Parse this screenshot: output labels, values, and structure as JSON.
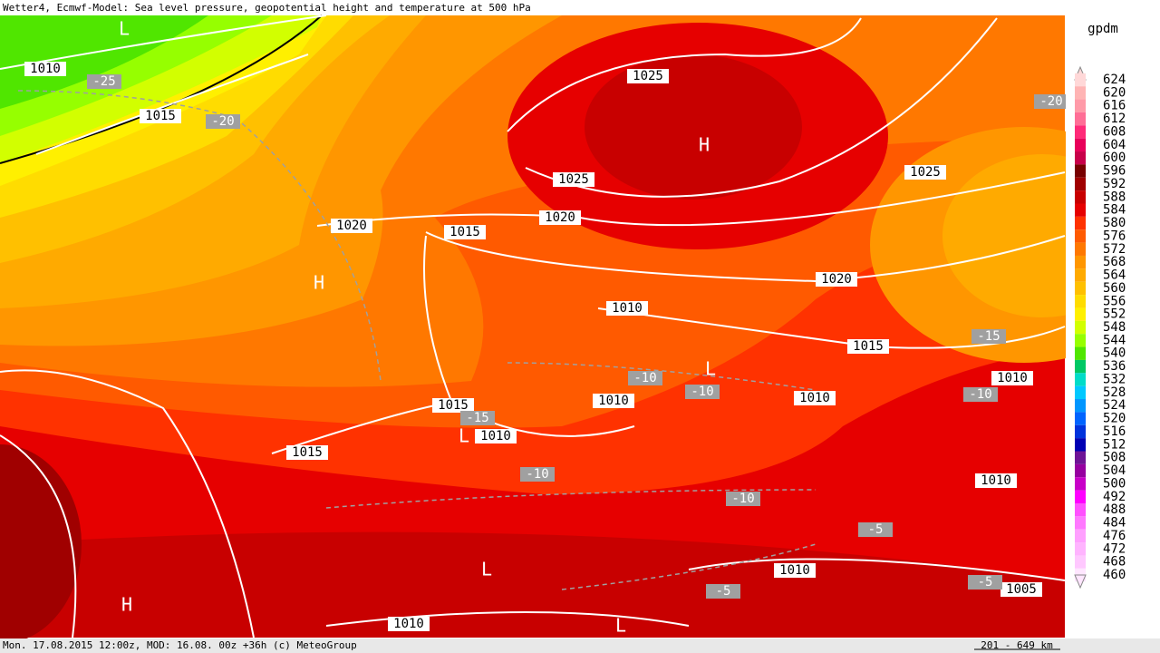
{
  "header": {
    "title": "Wetter4, Ecmwf-Model: Sea level pressure, geopotential height and temperature at 500 hPa"
  },
  "legend": {
    "unit": "gpdm",
    "levels": [
      {
        "value": 624,
        "color": "#ffd8d8"
      },
      {
        "value": 620,
        "color": "#ffb4b4"
      },
      {
        "value": 616,
        "color": "#ff9aa8"
      },
      {
        "value": 612,
        "color": "#ff6e96"
      },
      {
        "value": 608,
        "color": "#ff2a78"
      },
      {
        "value": 604,
        "color": "#e8005a"
      },
      {
        "value": 600,
        "color": "#c8004a"
      },
      {
        "value": 596,
        "color": "#780000"
      },
      {
        "value": 592,
        "color": "#a00000"
      },
      {
        "value": 588,
        "color": "#c80000"
      },
      {
        "value": 584,
        "color": "#e60000"
      },
      {
        "value": 580,
        "color": "#ff3200"
      },
      {
        "value": 576,
        "color": "#ff5a00"
      },
      {
        "value": 572,
        "color": "#ff7800"
      },
      {
        "value": 568,
        "color": "#ff9600"
      },
      {
        "value": 564,
        "color": "#ffaa00"
      },
      {
        "value": 560,
        "color": "#ffc000"
      },
      {
        "value": 556,
        "color": "#ffdc00"
      },
      {
        "value": 552,
        "color": "#fff000"
      },
      {
        "value": 548,
        "color": "#d2ff00"
      },
      {
        "value": 544,
        "color": "#96ff00"
      },
      {
        "value": 540,
        "color": "#50e600"
      },
      {
        "value": 536,
        "color": "#00c864"
      },
      {
        "value": 532,
        "color": "#00dcc8"
      },
      {
        "value": 528,
        "color": "#00c8ff"
      },
      {
        "value": 524,
        "color": "#0096ff"
      },
      {
        "value": 520,
        "color": "#0064ff"
      },
      {
        "value": 516,
        "color": "#0032dc"
      },
      {
        "value": 512,
        "color": "#0000b4"
      },
      {
        "value": 508,
        "color": "#6e1496"
      },
      {
        "value": 504,
        "color": "#9600a0"
      },
      {
        "value": 500,
        "color": "#c800c8"
      },
      {
        "value": 492,
        "color": "#ff00ff"
      },
      {
        "value": 488,
        "color": "#ff50ff"
      },
      {
        "value": 484,
        "color": "#ff78ff"
      },
      {
        "value": 476,
        "color": "#ffa0ff"
      },
      {
        "value": 472,
        "color": "#ffb4ff"
      },
      {
        "value": 468,
        "color": "#ffc8ff"
      },
      {
        "value": 460,
        "color": "#ffe6ff"
      }
    ]
  },
  "isobar_labels": [
    1010,
    1015,
    1025,
    1025,
    1020,
    1015,
    1020,
    1025,
    1020,
    1010,
    1015,
    1015,
    1010,
    1010,
    1015,
    1010,
    1010,
    1010,
    1010,
    1005,
    1010
  ],
  "temperature_labels": [
    -25,
    -20,
    -20,
    -15,
    -10,
    -10,
    -10,
    -15,
    -10,
    -10,
    -5,
    -5,
    -5
  ],
  "pressure_centers": [
    "L",
    "H",
    "H",
    "L",
    "L",
    "L",
    "H",
    "L"
  ],
  "footer": {
    "info": "Mon. 17.08.2015 12:00z, MOD: 16.08. 00z +36h (c) MeteoGroup",
    "scale": "201 - 649 km"
  }
}
